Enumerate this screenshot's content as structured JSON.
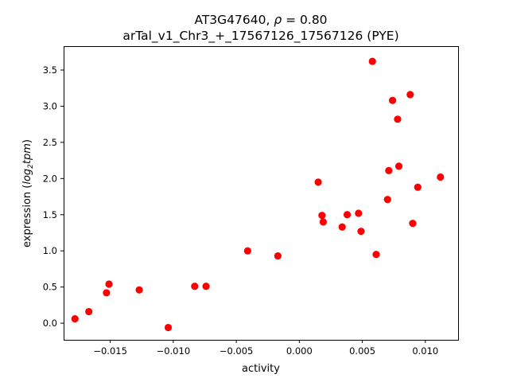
{
  "chart_data": {
    "type": "scatter",
    "title_line1_main": "AT3G47640, ",
    "title_line1_rho": "ρ",
    "title_line1_tail": " = 0.80",
    "title_line2": "arTal_v1_Chr3_+_17567126_17567126 (PYE)",
    "xlabel": "activity",
    "ylabel_prefix": "expression (",
    "ylabel_log": "log",
    "ylabel_sub": "2",
    "ylabel_tpm": "tpm",
    "ylabel_suffix": ")",
    "xlim": [
      -0.0187,
      0.0126
    ],
    "ylim": [
      -0.23,
      3.83
    ],
    "xticks": [
      {
        "value": -0.015,
        "label": "−0.015"
      },
      {
        "value": -0.01,
        "label": "−0.010"
      },
      {
        "value": -0.005,
        "label": "−0.005"
      },
      {
        "value": 0.0,
        "label": "0.000"
      },
      {
        "value": 0.005,
        "label": "0.005"
      },
      {
        "value": 0.01,
        "label": "0.010"
      }
    ],
    "yticks": [
      {
        "value": 0.0,
        "label": "0.0"
      },
      {
        "value": 0.5,
        "label": "0.5"
      },
      {
        "value": 1.0,
        "label": "1.0"
      },
      {
        "value": 1.5,
        "label": "1.5"
      },
      {
        "value": 2.0,
        "label": "2.0"
      },
      {
        "value": 2.5,
        "label": "2.5"
      },
      {
        "value": 3.0,
        "label": "3.0"
      },
      {
        "value": 3.5,
        "label": "3.5"
      }
    ],
    "marker_color": "#ff0000",
    "grid": false,
    "points": [
      {
        "x": -0.0178,
        "y": 0.06
      },
      {
        "x": -0.0167,
        "y": 0.16
      },
      {
        "x": -0.0153,
        "y": 0.42
      },
      {
        "x": -0.0151,
        "y": 0.54
      },
      {
        "x": -0.0127,
        "y": 0.46
      },
      {
        "x": -0.0104,
        "y": -0.06
      },
      {
        "x": -0.0083,
        "y": 0.51
      },
      {
        "x": -0.0074,
        "y": 0.51
      },
      {
        "x": -0.0041,
        "y": 1.0
      },
      {
        "x": -0.0017,
        "y": 0.93
      },
      {
        "x": 0.0015,
        "y": 1.95
      },
      {
        "x": 0.0018,
        "y": 1.49
      },
      {
        "x": 0.0019,
        "y": 1.4
      },
      {
        "x": 0.0034,
        "y": 1.33
      },
      {
        "x": 0.0038,
        "y": 1.5
      },
      {
        "x": 0.0047,
        "y": 1.52
      },
      {
        "x": 0.0049,
        "y": 1.27
      },
      {
        "x": 0.0058,
        "y": 3.62
      },
      {
        "x": 0.0061,
        "y": 0.95
      },
      {
        "x": 0.007,
        "y": 1.71
      },
      {
        "x": 0.0071,
        "y": 2.11
      },
      {
        "x": 0.0074,
        "y": 3.08
      },
      {
        "x": 0.0078,
        "y": 2.82
      },
      {
        "x": 0.0079,
        "y": 2.17
      },
      {
        "x": 0.0088,
        "y": 3.16
      },
      {
        "x": 0.009,
        "y": 1.38
      },
      {
        "x": 0.0094,
        "y": 1.88
      },
      {
        "x": 0.0112,
        "y": 2.02
      }
    ]
  }
}
